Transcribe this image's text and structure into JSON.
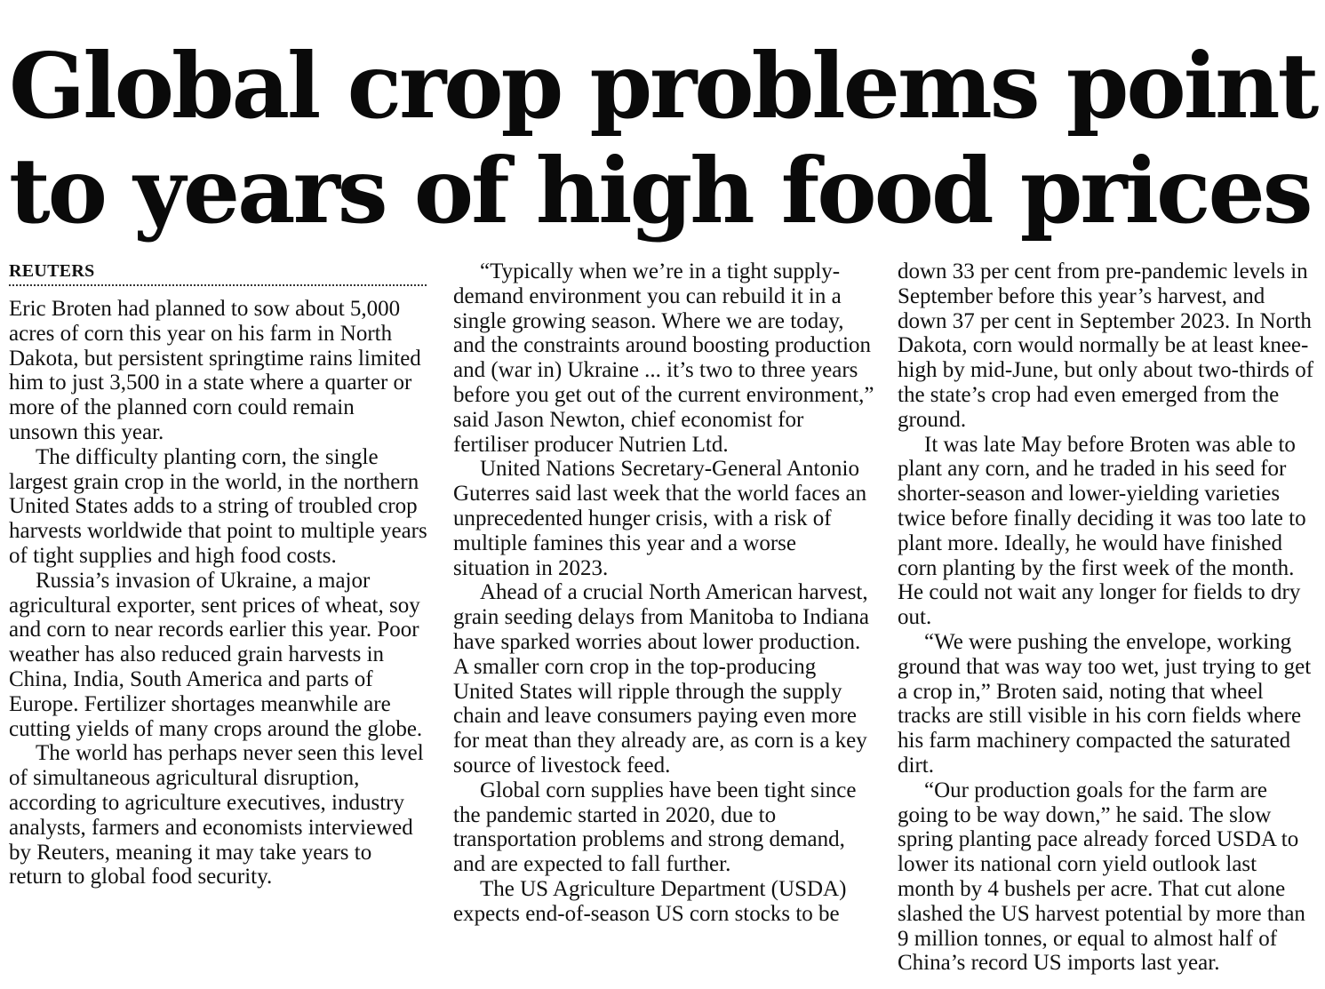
{
  "headline": {
    "line1": "Global crop problems point",
    "line2": "to years of high food prices"
  },
  "byline": "REUTERS",
  "columns": [
    {
      "paragraphs": [
        "Eric Broten had planned to sow about 5,000 acres of corn this year on his farm in North Dakota, but persistent springtime rains limited him to just 3,500 in a state where a quarter or more of the planned corn could remain unsown this year.",
        "The difficulty planting corn, the single largest grain crop in the world, in the northern United States adds to a string of troubled crop harvests worldwide that point to multiple years of tight supplies and high food costs.",
        "Russia’s invasion of Ukraine, a major agricultural exporter, sent prices of wheat, soy and corn to near records earlier this year. Poor weather has also reduced grain harvests in China, India, South America and parts of Europe. Fertilizer shortages meanwhile are cutting yields of many crops around the globe.",
        "The world has perhaps never seen this level of simultaneous agricultural disruption, according to agriculture executives, industry analysts, farmers and economists interviewed by Reuters, meaning it may take years to return to global food security."
      ]
    },
    {
      "paragraphs": [
        "“Typically when we’re in a tight supply-demand environment you can rebuild it in a single growing season. Where we are today, and the constraints around boosting production and (war in) Ukraine ... it’s two to three years before you get out of the current environment,” said Jason Newton, chief economist for fertiliser producer Nutrien Ltd.",
        "United Nations Secretary-General Antonio Guterres said last week that the world faces an unprecedented hunger crisis, with a risk of multiple famines this year and a worse situation in 2023.",
        "Ahead of a crucial North American harvest, grain seeding delays from Manitoba to Indiana have sparked worries about lower production. A smaller corn crop in the top-producing United States will ripple through the supply chain and leave consumers paying even more for meat than they already are, as corn is a key source of livestock feed.",
        "Global corn supplies have been tight since the pandemic started in 2020, due to transportation problems and strong demand, and are expected to fall further.",
        "The US Agriculture Department (USDA) expects end-of-season US corn stocks to be"
      ]
    },
    {
      "continuation": "down 33 per cent from pre-pandemic levels in September before this year’s harvest, and down 37 per cent in September 2023. In North Dakota, corn would normally be at least knee-high by mid-June, but only about two-thirds of the state’s crop had even emerged from the ground.",
      "paragraphs": [
        "It was late May before Broten was able to plant any corn, and he traded in his seed for shorter-season and lower-yielding varieties twice before finally deciding it was too late to plant more. Ideally, he would have finished corn planting by the first week of the month. He could not wait any longer for fields to dry out.",
        "“We were pushing the envelope, working ground that was way too wet, just trying to get a crop in,” Broten said, noting that wheel tracks are still visible in his corn fields where his farm machinery compacted the saturated dirt.",
        "“Our production goals for the farm are going to be way down,” he said. The slow spring planting pace already forced USDA to lower its national corn yield outlook last month by 4 bushels per acre. That cut alone slashed the US harvest potential by more than 9 million tonnes, or equal to almost half of China’s record US imports last year."
      ]
    }
  ]
}
